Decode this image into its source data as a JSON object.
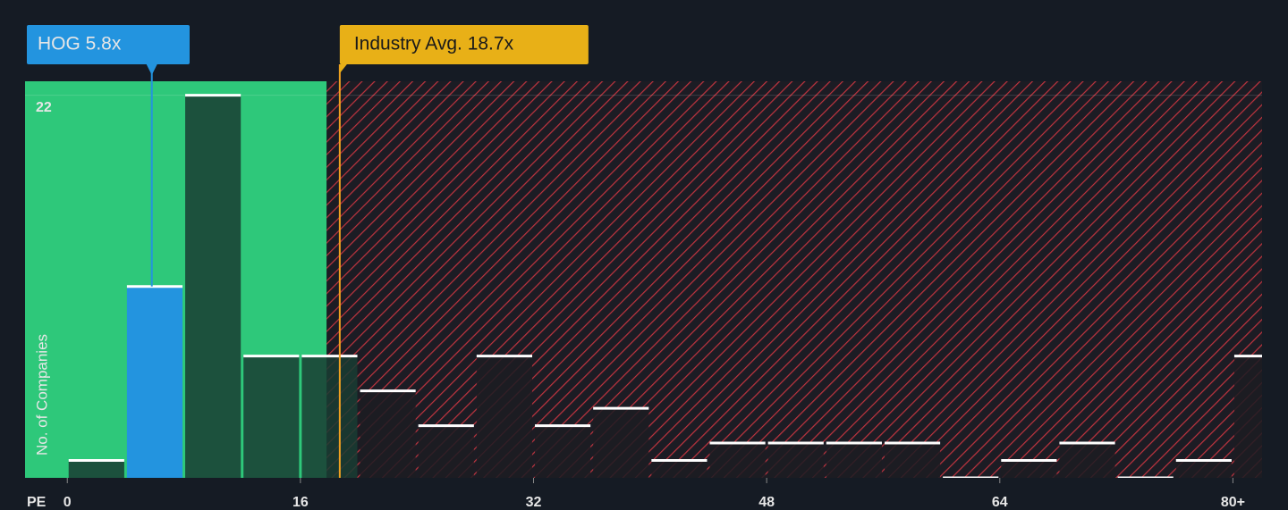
{
  "chart_data": {
    "type": "histogram",
    "bins": [
      0,
      4,
      8,
      12,
      16,
      20,
      24,
      28,
      32,
      36,
      40,
      44,
      48,
      52,
      56,
      60,
      64,
      68,
      72,
      76,
      80,
      84
    ],
    "values": [
      1,
      11,
      22,
      7,
      7,
      5,
      3,
      7,
      3,
      4,
      1,
      2,
      2,
      2,
      2,
      0,
      1,
      2,
      0,
      1,
      7
    ],
    "xlim": [
      -2.9,
      82
    ],
    "ylim": [
      0,
      22.8
    ],
    "xticks": [
      0,
      16,
      32,
      48,
      64,
      {
        "value": 80,
        "label": "80+"
      }
    ],
    "yticks": [
      22
    ],
    "grid": true,
    "x_label": "PE",
    "y_label": "No. of Companies",
    "fair_until": 17.8,
    "annotations": [
      {
        "label": "HOG 5.8x",
        "value": 5.8,
        "color": "#2394df"
      },
      {
        "label": "Industry Avg. 18.7x",
        "value": 18.7,
        "color": "#e8b017"
      }
    ]
  }
}
